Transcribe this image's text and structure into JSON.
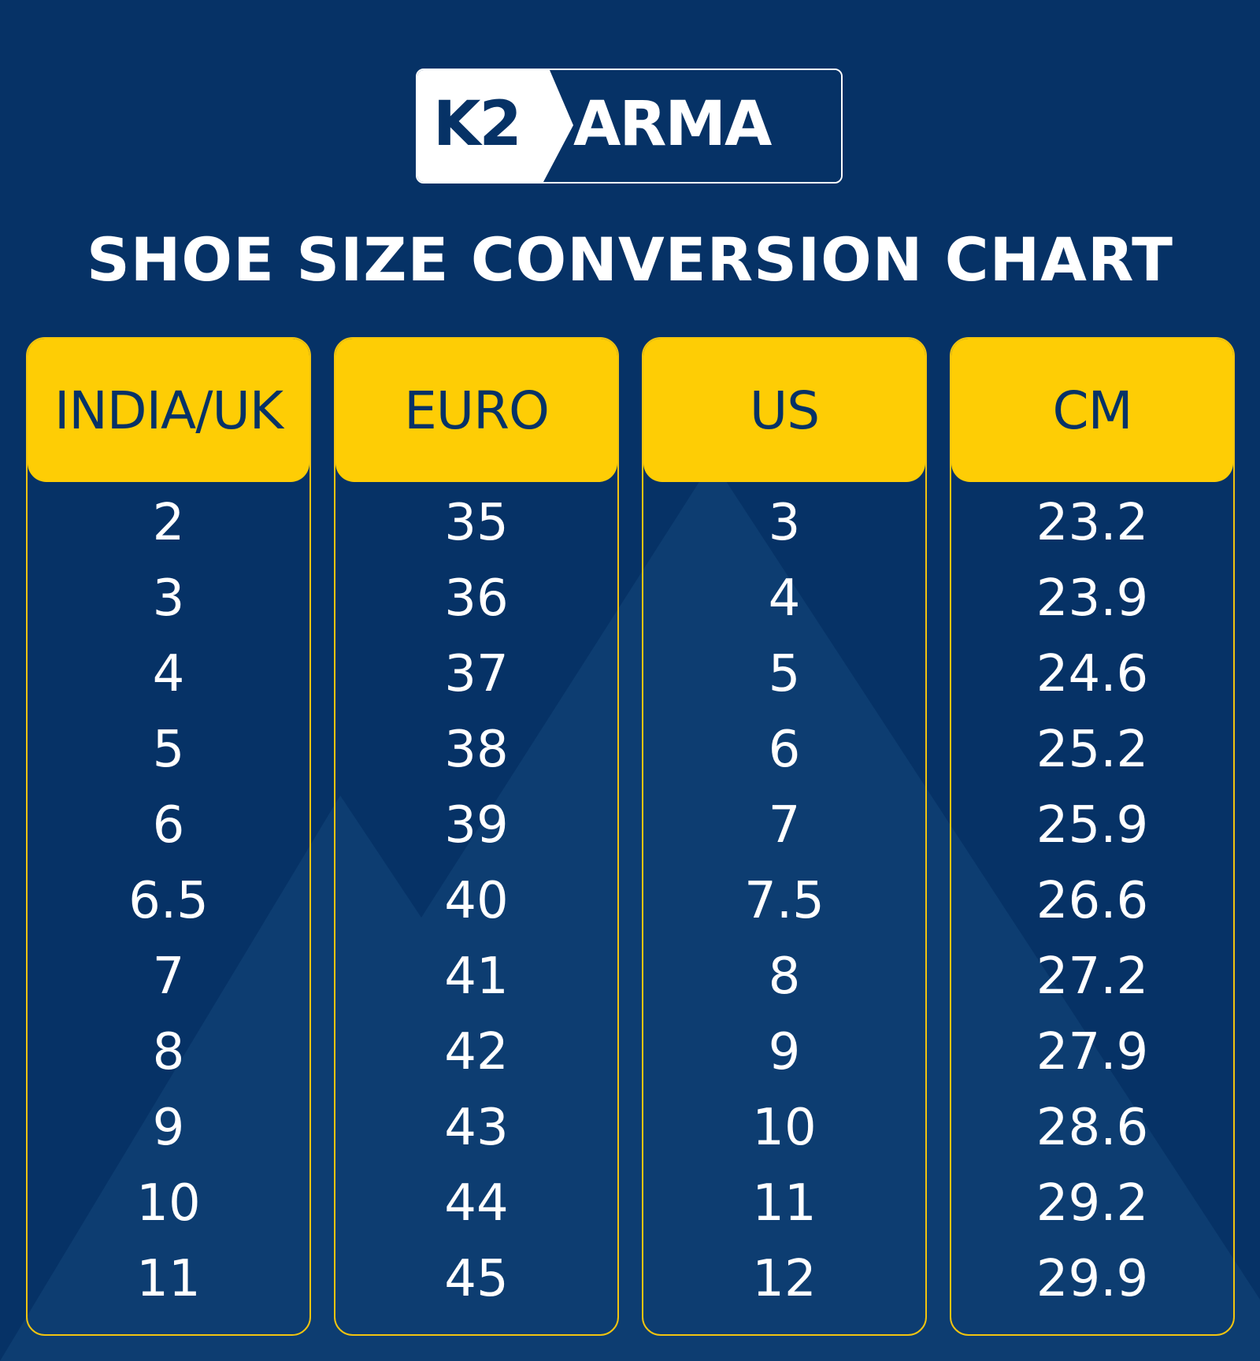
{
  "logo": {
    "text_left": "K2",
    "text_right": "ARMA"
  },
  "title": "SHOE SIZE CONVERSION CHART",
  "columns": [
    {
      "header": "INDIA/UK",
      "values": [
        "2",
        "3",
        "4",
        "5",
        "6",
        "6.5",
        "7",
        "8",
        "9",
        "10",
        "11"
      ]
    },
    {
      "header": "EURO",
      "values": [
        "35",
        "36",
        "37",
        "38",
        "39",
        "40",
        "41",
        "42",
        "43",
        "44",
        "45"
      ]
    },
    {
      "header": "US",
      "values": [
        "3",
        "4",
        "5",
        "6",
        "7",
        "7.5",
        "8",
        "9",
        "10",
        "11",
        "12"
      ]
    },
    {
      "header": "CM",
      "values": [
        "23.2",
        "23.9",
        "24.6",
        "25.2",
        "25.9",
        "26.6",
        "27.2",
        "27.9",
        "28.6",
        "29.2",
        "29.9"
      ]
    }
  ],
  "colors": {
    "background": "#063266",
    "accent": "#fecd05",
    "text": "#ffffff"
  }
}
